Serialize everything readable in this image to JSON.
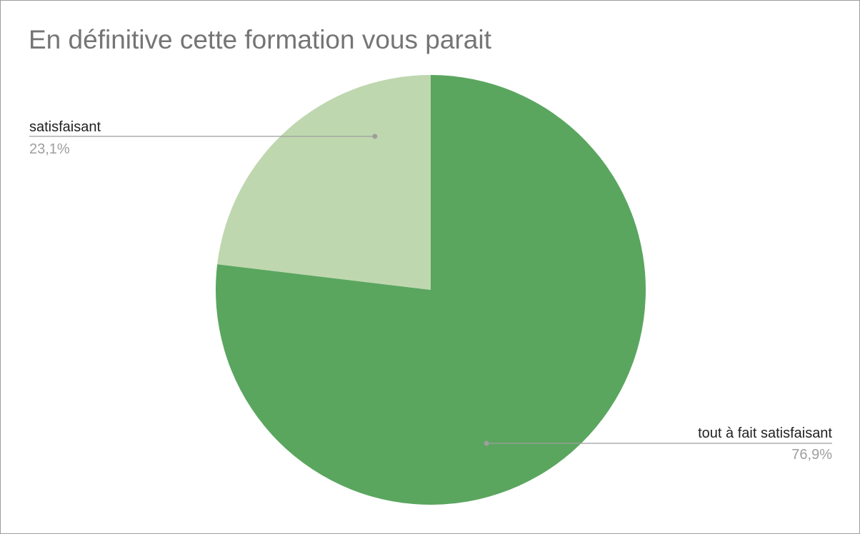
{
  "chart_data": {
    "type": "pie",
    "title": "En définitive cette formation vous parait",
    "slices": [
      {
        "label": "tout à fait satisfaisant",
        "value": 76.9,
        "value_label": "76,9%",
        "color": "#5aa65f"
      },
      {
        "label": "satisfaisant",
        "value": 23.1,
        "value_label": "23,1%",
        "color": "#bfd7af"
      }
    ],
    "legend": "none",
    "leader_line_color": "#9e9e9e"
  }
}
